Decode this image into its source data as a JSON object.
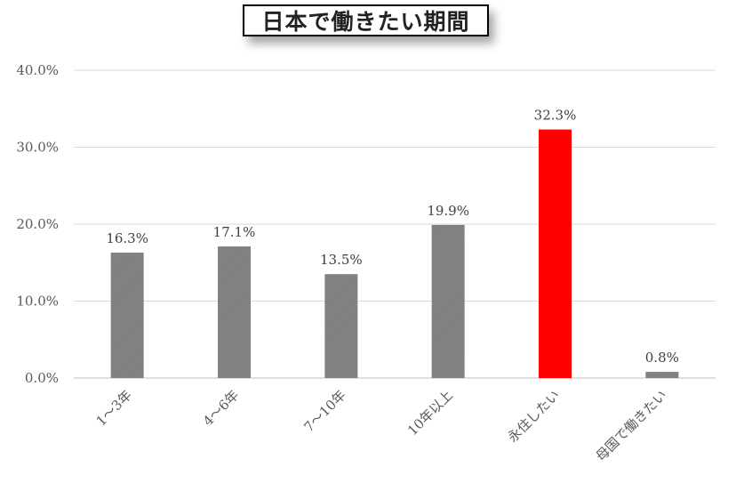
{
  "chart_data": {
    "type": "bar",
    "title": "日本で働きたい期間",
    "categories": [
      "1～3年",
      "4～6年",
      "7～10年",
      "10年以上",
      "永住したい",
      "母国で働きたい"
    ],
    "values": [
      16.3,
      17.1,
      13.5,
      19.9,
      32.3,
      0.8
    ],
    "data_labels": [
      "16.3%",
      "17.1%",
      "13.5%",
      "19.9%",
      "32.3%",
      "0.8%"
    ],
    "ylim": [
      0,
      40
    ],
    "yticks": [
      0,
      10,
      20,
      30,
      40
    ],
    "ytick_labels": [
      "0.0%",
      "10.0%",
      "20.0%",
      "30.0%",
      "40.0%"
    ],
    "grid": true,
    "colors": {
      "bar": "#7f7f7f",
      "highlight": "#ff0000",
      "grid": "#d9d9d9"
    },
    "highlight_index": 4
  }
}
